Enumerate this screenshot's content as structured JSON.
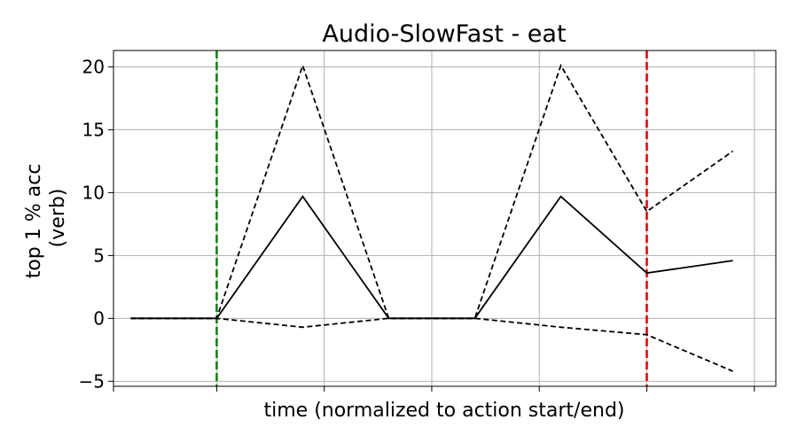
{
  "chart_data": {
    "type": "line",
    "title": "Audio-SlowFast - eat",
    "xlabel": "time (normalized to action start/end)",
    "ylabel": [
      "top 1 % acc",
      "(verb)"
    ],
    "x": [
      -1,
      0,
      1,
      2,
      3,
      4,
      5,
      6
    ],
    "xlim": [
      -1.2,
      6.5
    ],
    "ylim": [
      -5.4,
      21.3
    ],
    "yticks": [
      -5,
      0,
      5,
      10,
      15,
      20
    ],
    "ytick_labels": [
      "−5",
      "0",
      "5",
      "10",
      "15",
      "20"
    ],
    "xticks": [
      -1.2,
      0,
      1.25,
      2.5,
      3.75,
      5,
      6.25
    ],
    "grid": true,
    "series": [
      {
        "role": "mean",
        "style": "solid",
        "color": "#000000",
        "values": [
          0,
          0,
          9.7,
          0,
          0,
          9.7,
          3.6,
          4.6
        ]
      },
      {
        "role": "upper",
        "style": "dashed",
        "color": "#000000",
        "values": [
          0,
          0,
          20.1,
          0,
          0,
          20.1,
          8.5,
          13.3
        ]
      },
      {
        "role": "lower",
        "style": "dashed",
        "color": "#000000",
        "values": [
          0,
          0,
          -0.7,
          0,
          0,
          -0.7,
          -1.3,
          -4.2
        ]
      }
    ],
    "vlines": [
      {
        "x": 0,
        "color": "#008000",
        "style": "dashed",
        "meaning": "action start"
      },
      {
        "x": 5,
        "color": "#dd0000",
        "style": "dashed",
        "meaning": "action end"
      }
    ]
  }
}
